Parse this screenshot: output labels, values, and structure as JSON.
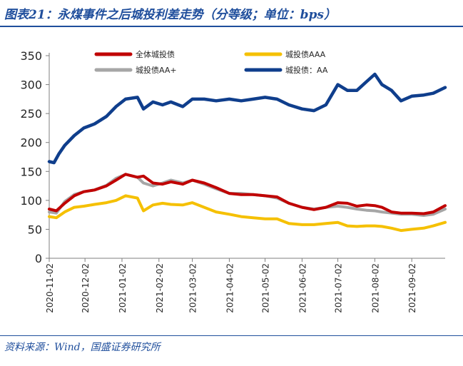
{
  "header": {
    "title": "图表21：永煤事件之后城投利差走势（分等级；单位：bps）"
  },
  "footer": {
    "source": "资料来源：Wind，国盛证券研究所"
  },
  "chart_data": {
    "type": "line",
    "title": "",
    "xlabel": "",
    "ylabel": "",
    "ylim": [
      0,
      350
    ],
    "yticks": [
      0,
      50,
      100,
      150,
      200,
      250,
      300,
      350
    ],
    "xlim": [
      "2020-11-02",
      "2021-09-30"
    ],
    "xticks": [
      "2020-11-02",
      "2020-12-02",
      "2021-01-02",
      "2021-02-02",
      "2021-03-02",
      "2021-04-02",
      "2021-05-02",
      "2021-06-02",
      "2021-07-02",
      "2021-08-02",
      "2021-09-02"
    ],
    "grid": false,
    "legend_placement": "top",
    "series": [
      {
        "name": "全体城投债",
        "color": "#c00000",
        "points": [
          [
            "2020-11-02",
            85
          ],
          [
            "2020-11-08",
            82
          ],
          [
            "2020-11-15",
            95
          ],
          [
            "2020-11-23",
            108
          ],
          [
            "2020-12-01",
            115
          ],
          [
            "2020-12-10",
            118
          ],
          [
            "2020-12-20",
            125
          ],
          [
            "2020-12-28",
            135
          ],
          [
            "2021-01-05",
            145
          ],
          [
            "2021-01-15",
            140
          ],
          [
            "2021-01-20",
            142
          ],
          [
            "2021-01-28",
            130
          ],
          [
            "2021-02-05",
            128
          ],
          [
            "2021-02-12",
            132
          ],
          [
            "2021-02-22",
            128
          ],
          [
            "2021-03-02",
            135
          ],
          [
            "2021-03-12",
            130
          ],
          [
            "2021-03-22",
            122
          ],
          [
            "2021-04-02",
            112
          ],
          [
            "2021-04-12",
            110
          ],
          [
            "2021-04-22",
            110
          ],
          [
            "2021-05-02",
            108
          ],
          [
            "2021-05-12",
            106
          ],
          [
            "2021-05-22",
            95
          ],
          [
            "2021-06-02",
            88
          ],
          [
            "2021-06-12",
            84
          ],
          [
            "2021-06-22",
            88
          ],
          [
            "2021-07-02",
            96
          ],
          [
            "2021-07-10",
            95
          ],
          [
            "2021-07-18",
            90
          ],
          [
            "2021-07-26",
            92
          ],
          [
            "2021-08-02",
            91
          ],
          [
            "2021-08-08",
            88
          ],
          [
            "2021-08-16",
            80
          ],
          [
            "2021-08-24",
            78
          ],
          [
            "2021-09-02",
            78
          ],
          [
            "2021-09-12",
            77
          ],
          [
            "2021-09-20",
            80
          ],
          [
            "2021-09-30",
            91
          ]
        ]
      },
      {
        "name": "城投债AAA",
        "color": "#f5c000",
        "points": [
          [
            "2020-11-02",
            72
          ],
          [
            "2020-11-08",
            70
          ],
          [
            "2020-11-15",
            80
          ],
          [
            "2020-11-23",
            88
          ],
          [
            "2020-12-01",
            90
          ],
          [
            "2020-12-10",
            93
          ],
          [
            "2020-12-20",
            96
          ],
          [
            "2020-12-28",
            100
          ],
          [
            "2021-01-05",
            108
          ],
          [
            "2021-01-15",
            104
          ],
          [
            "2021-01-20",
            82
          ],
          [
            "2021-01-28",
            92
          ],
          [
            "2021-02-05",
            95
          ],
          [
            "2021-02-12",
            93
          ],
          [
            "2021-02-22",
            92
          ],
          [
            "2021-03-02",
            96
          ],
          [
            "2021-03-12",
            88
          ],
          [
            "2021-03-22",
            80
          ],
          [
            "2021-04-02",
            76
          ],
          [
            "2021-04-12",
            72
          ],
          [
            "2021-04-22",
            70
          ],
          [
            "2021-05-02",
            68
          ],
          [
            "2021-05-12",
            68
          ],
          [
            "2021-05-22",
            60
          ],
          [
            "2021-06-02",
            58
          ],
          [
            "2021-06-12",
            58
          ],
          [
            "2021-06-22",
            60
          ],
          [
            "2021-07-02",
            62
          ],
          [
            "2021-07-10",
            56
          ],
          [
            "2021-07-18",
            55
          ],
          [
            "2021-07-26",
            56
          ],
          [
            "2021-08-02",
            56
          ],
          [
            "2021-08-08",
            55
          ],
          [
            "2021-08-16",
            52
          ],
          [
            "2021-08-24",
            48
          ],
          [
            "2021-09-02",
            50
          ],
          [
            "2021-09-12",
            52
          ],
          [
            "2021-09-20",
            56
          ],
          [
            "2021-09-30",
            62
          ]
        ]
      },
      {
        "name": "城投债AA+",
        "color": "#a6a6a6",
        "points": [
          [
            "2020-11-02",
            80
          ],
          [
            "2020-11-08",
            78
          ],
          [
            "2020-11-15",
            98
          ],
          [
            "2020-11-23",
            110
          ],
          [
            "2020-12-01",
            115
          ],
          [
            "2020-12-10",
            118
          ],
          [
            "2020-12-20",
            126
          ],
          [
            "2020-12-28",
            138
          ],
          [
            "2021-01-05",
            145
          ],
          [
            "2021-01-15",
            140
          ],
          [
            "2021-01-20",
            130
          ],
          [
            "2021-01-28",
            125
          ],
          [
            "2021-02-05",
            130
          ],
          [
            "2021-02-12",
            135
          ],
          [
            "2021-02-22",
            130
          ],
          [
            "2021-03-02",
            135
          ],
          [
            "2021-03-12",
            128
          ],
          [
            "2021-03-22",
            120
          ],
          [
            "2021-04-02",
            112
          ],
          [
            "2021-04-12",
            112
          ],
          [
            "2021-04-22",
            110
          ],
          [
            "2021-05-02",
            108
          ],
          [
            "2021-05-12",
            104
          ],
          [
            "2021-05-22",
            95
          ],
          [
            "2021-06-02",
            88
          ],
          [
            "2021-06-12",
            85
          ],
          [
            "2021-06-22",
            88
          ],
          [
            "2021-07-02",
            90
          ],
          [
            "2021-07-10",
            88
          ],
          [
            "2021-07-18",
            85
          ],
          [
            "2021-07-26",
            83
          ],
          [
            "2021-08-02",
            82
          ],
          [
            "2021-08-08",
            80
          ],
          [
            "2021-08-16",
            78
          ],
          [
            "2021-08-24",
            76
          ],
          [
            "2021-09-02",
            76
          ],
          [
            "2021-09-12",
            74
          ],
          [
            "2021-09-20",
            76
          ],
          [
            "2021-09-30",
            85
          ]
        ]
      },
      {
        "name": "城投债：AA",
        "color": "#0f3e8c",
        "points": [
          [
            "2020-11-02",
            167
          ],
          [
            "2020-11-06",
            165
          ],
          [
            "2020-11-10",
            180
          ],
          [
            "2020-11-15",
            195
          ],
          [
            "2020-11-23",
            212
          ],
          [
            "2020-12-01",
            225
          ],
          [
            "2020-12-10",
            232
          ],
          [
            "2020-12-20",
            245
          ],
          [
            "2020-12-28",
            262
          ],
          [
            "2021-01-05",
            275
          ],
          [
            "2021-01-15",
            278
          ],
          [
            "2021-01-20",
            258
          ],
          [
            "2021-01-28",
            270
          ],
          [
            "2021-02-05",
            265
          ],
          [
            "2021-02-12",
            270
          ],
          [
            "2021-02-22",
            262
          ],
          [
            "2021-03-02",
            275
          ],
          [
            "2021-03-12",
            275
          ],
          [
            "2021-03-22",
            272
          ],
          [
            "2021-04-02",
            275
          ],
          [
            "2021-04-12",
            272
          ],
          [
            "2021-04-22",
            275
          ],
          [
            "2021-05-02",
            278
          ],
          [
            "2021-05-12",
            275
          ],
          [
            "2021-05-22",
            265
          ],
          [
            "2021-06-02",
            258
          ],
          [
            "2021-06-12",
            255
          ],
          [
            "2021-06-22",
            265
          ],
          [
            "2021-07-02",
            300
          ],
          [
            "2021-07-10",
            290
          ],
          [
            "2021-07-18",
            290
          ],
          [
            "2021-07-26",
            305
          ],
          [
            "2021-08-02",
            318
          ],
          [
            "2021-08-08",
            300
          ],
          [
            "2021-08-16",
            290
          ],
          [
            "2021-08-24",
            272
          ],
          [
            "2021-09-02",
            280
          ],
          [
            "2021-09-12",
            282
          ],
          [
            "2021-09-20",
            285
          ],
          [
            "2021-09-30",
            295
          ]
        ]
      }
    ]
  }
}
